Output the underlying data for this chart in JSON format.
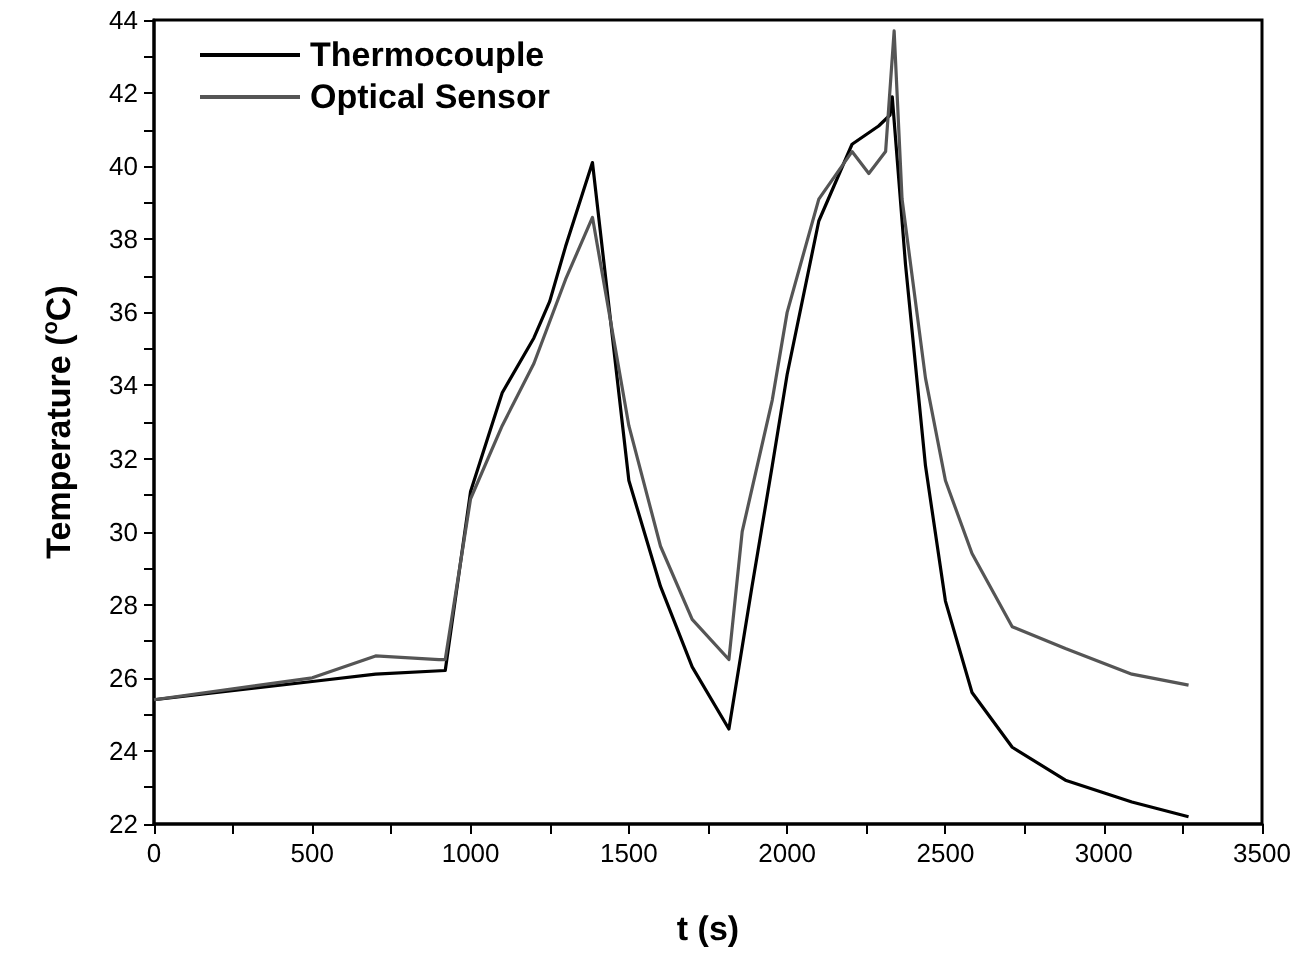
{
  "chart_data": {
    "type": "line",
    "xlabel": "t (s)",
    "ylabel": "Temperature ($^{o}$C)",
    "xlim": [
      0,
      3500
    ],
    "xticks": [
      0,
      500,
      1000,
      1500,
      2000,
      2500,
      3000,
      3500
    ],
    "ylim": [
      22,
      44
    ],
    "yticks": [
      22,
      24,
      26,
      28,
      30,
      32,
      34,
      36,
      38,
      40,
      42,
      44
    ],
    "grid": false,
    "legend": "top left",
    "marker": "none",
    "line_style": "solid",
    "series": [
      {
        "name": "Thermocouple",
        "color": "#000000",
        "x": [
          0,
          500,
          700,
          920,
          1000,
          1100,
          1200,
          1250,
          1300,
          1385,
          1500,
          1600,
          1700,
          1816,
          1889,
          1953,
          2000,
          2100,
          2205,
          2289,
          2325,
          2332,
          2374,
          2437,
          2500,
          2584,
          2711,
          2879,
          3089,
          3268
        ],
        "values": [
          25.4,
          25.9,
          26.1,
          26.2,
          31.1,
          33.8,
          35.3,
          36.3,
          37.8,
          40.1,
          31.4,
          28.5,
          26.3,
          24.6,
          28.5,
          31.8,
          34.3,
          38.5,
          40.6,
          41.1,
          41.4,
          41.9,
          37.3,
          31.8,
          28.1,
          25.6,
          24.1,
          23.2,
          22.6,
          22.2
        ]
      },
      {
        "name": "Optical Sensor",
        "color": "#555555",
        "x": [
          0,
          500,
          700,
          900,
          920,
          1000,
          1100,
          1200,
          1300,
          1385,
          1500,
          1600,
          1700,
          1816,
          1858,
          1953,
          2000,
          2100,
          2205,
          2258,
          2311,
          2338,
          2363,
          2437,
          2500,
          2584,
          2711,
          2879,
          3089,
          3268
        ],
        "values": [
          25.4,
          26.0,
          26.6,
          26.5,
          26.5,
          30.9,
          32.9,
          34.6,
          36.9,
          38.6,
          32.9,
          29.6,
          27.6,
          26.5,
          30.0,
          33.6,
          36.0,
          39.1,
          40.4,
          39.8,
          40.4,
          43.7,
          39.1,
          34.2,
          31.4,
          29.4,
          27.4,
          26.8,
          26.1,
          25.8
        ]
      }
    ]
  }
}
